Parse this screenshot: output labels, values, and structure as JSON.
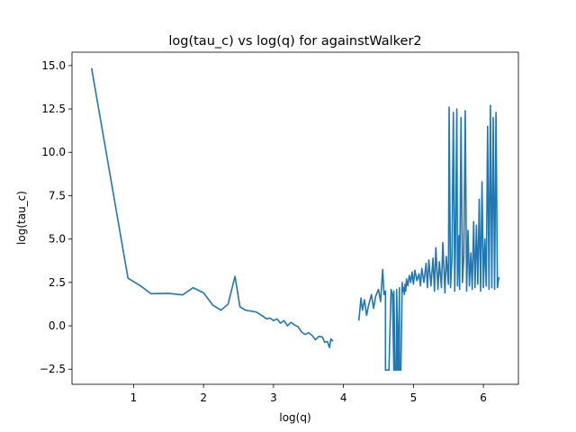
{
  "chart_data": {
    "type": "line",
    "title": "log(tau_c) vs log(q) for againstWalker2",
    "xlabel": "log(q)",
    "ylabel": "log(tau_c)",
    "xlim": [
      0.12,
      6.5
    ],
    "ylim": [
      -3.37,
      15.77
    ],
    "x_ticks": [
      1,
      2,
      3,
      4,
      5,
      6
    ],
    "y_ticks": [
      -2.5,
      0.0,
      2.5,
      5.0,
      7.5,
      10.0,
      12.5,
      15.0
    ],
    "x_tick_labels": [
      "1",
      "2",
      "3",
      "4",
      "5",
      "6"
    ],
    "y_tick_labels": [
      "−2.5",
      "0.0",
      "2.5",
      "5.0",
      "7.5",
      "10.0",
      "12.5",
      "15.0"
    ],
    "grid": false,
    "line_color": "#1f77b4",
    "series": [
      {
        "x": [
          0.4,
          0.92,
          1.1,
          1.25,
          1.5,
          1.7,
          1.85,
          2.0,
          2.13,
          2.25,
          2.35,
          2.45,
          2.52,
          2.6,
          2.75,
          2.85,
          2.9,
          2.95,
          3.0,
          3.05,
          3.1,
          3.15,
          3.2,
          3.25,
          3.3,
          3.35,
          3.4,
          3.45,
          3.5,
          3.55,
          3.6,
          3.65,
          3.7,
          3.73,
          3.77,
          3.8,
          3.82,
          3.85
        ],
        "y": [
          14.85,
          2.75,
          2.3,
          1.85,
          1.87,
          1.78,
          2.2,
          1.9,
          1.2,
          0.9,
          1.25,
          2.85,
          1.1,
          0.9,
          0.8,
          0.55,
          0.4,
          0.45,
          0.3,
          0.4,
          0.15,
          0.3,
          0.0,
          0.2,
          0.05,
          -0.05,
          -0.35,
          -0.5,
          -0.4,
          -0.55,
          -0.8,
          -0.6,
          -0.65,
          -0.95,
          -0.9,
          -1.25,
          -0.75,
          -0.9
        ]
      },
      {
        "x": [
          4.22,
          4.25,
          4.27,
          4.3,
          4.33,
          4.36,
          4.4,
          4.43,
          4.46,
          4.5,
          4.53,
          4.56,
          4.58,
          4.6,
          4.6,
          4.62,
          4.65,
          4.68,
          4.7,
          4.72,
          4.72,
          4.74,
          4.76,
          4.76,
          4.78,
          4.8,
          4.8,
          4.82,
          4.84,
          4.85,
          4.86,
          4.87,
          4.88,
          4.89,
          4.9,
          4.92,
          4.94,
          4.96,
          4.98,
          5.0,
          5.02,
          5.05,
          5.08,
          5.1,
          5.12,
          5.15,
          5.18,
          5.2,
          5.22,
          5.25,
          5.28,
          5.3,
          5.32,
          5.35,
          5.37,
          5.4,
          5.42,
          5.45,
          5.47,
          5.5,
          5.51,
          5.53,
          5.55,
          5.57,
          5.59,
          5.6,
          5.62,
          5.63,
          5.65,
          5.66,
          5.68,
          5.7,
          5.72,
          5.74,
          5.76,
          5.78,
          5.8,
          5.82,
          5.84,
          5.86,
          5.88,
          5.9,
          5.92,
          5.94,
          5.96,
          5.98,
          6.0,
          6.02,
          6.04,
          6.06,
          6.08,
          6.1,
          6.12,
          6.14,
          6.16,
          6.18,
          6.2,
          6.22
        ],
        "y": [
          0.3,
          1.6,
          0.9,
          1.5,
          0.6,
          1.2,
          1.8,
          1.0,
          1.7,
          2.1,
          1.4,
          3.25,
          1.8,
          2.0,
          -2.55,
          -2.55,
          -2.55,
          2.1,
          1.8,
          -2.55,
          2.0,
          -2.55,
          -2.55,
          2.1,
          -2.55,
          2.2,
          -2.55,
          -2.55,
          2.5,
          2.0,
          2.2,
          1.8,
          2.4,
          2.0,
          2.7,
          2.3,
          2.9,
          2.5,
          3.1,
          2.4,
          3.2,
          2.6,
          3.0,
          2.3,
          3.3,
          2.5,
          3.6,
          2.2,
          3.8,
          2.3,
          3.9,
          2.0,
          4.5,
          2.1,
          3.7,
          2.2,
          4.8,
          1.9,
          4.0,
          2.4,
          12.6,
          2.2,
          3.8,
          12.3,
          2.0,
          4.5,
          12.5,
          2.3,
          5.2,
          2.1,
          12.0,
          2.5,
          4.0,
          12.4,
          2.0,
          5.5,
          2.3,
          4.2,
          2.1,
          6.0,
          2.2,
          5.8,
          2.4,
          7.3,
          2.0,
          8.3,
          2.2,
          5.0,
          2.3,
          11.5,
          2.1,
          12.7,
          2.2,
          12.0,
          2.1,
          12.3,
          2.2,
          2.8
        ]
      }
    ]
  }
}
